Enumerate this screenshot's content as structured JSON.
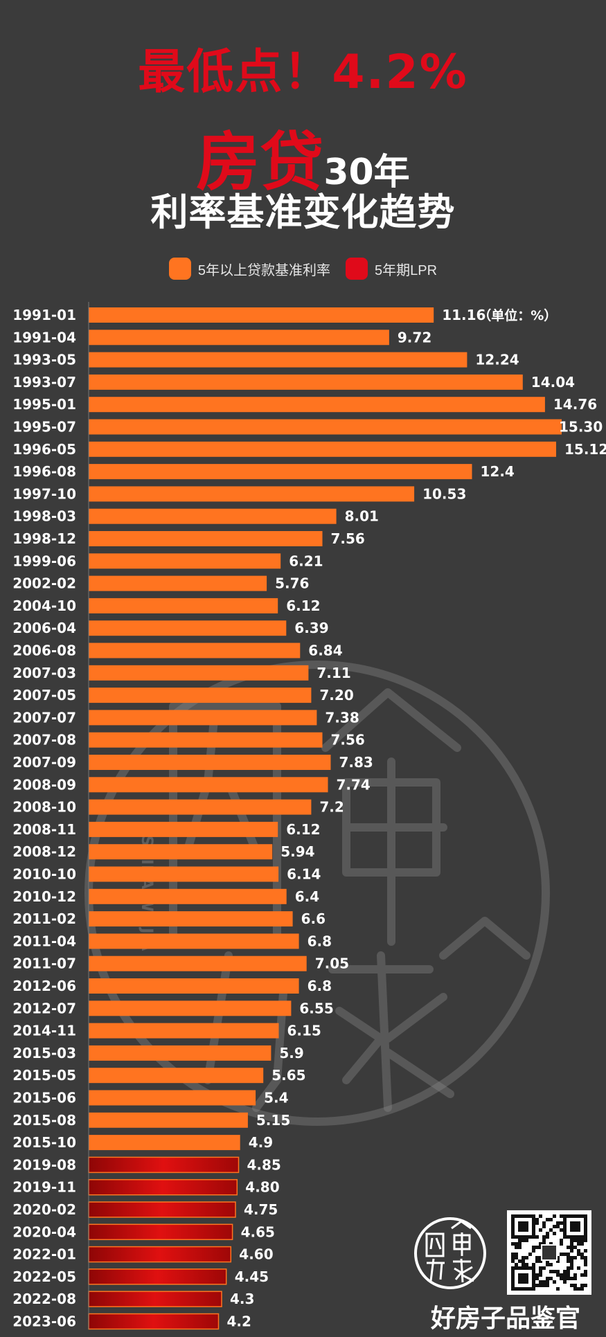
{
  "headline": {
    "top": "最低点！4.2%",
    "mid_big": "房贷",
    "mid_small": "30年",
    "bottom": "利率基准变化趋势"
  },
  "legend": {
    "series1": "5年以上贷款基准利率",
    "series2": "5年期LPR"
  },
  "brand": {
    "name": "好房子品鉴官",
    "watermark_side_text": "SHIHAIWEIJIA"
  },
  "colors": {
    "background": "#3b3b3b",
    "title_red": "#e00a1a",
    "bar_orange": "#ff7420",
    "bar_red": "#d10d0d"
  },
  "chart_data": {
    "type": "bar",
    "orientation": "horizontal",
    "unit_note": "（单位：%）",
    "categories": [
      "1991-01",
      "1991-04",
      "1993-05",
      "1993-07",
      "1995-01",
      "1995-07",
      "1996-05",
      "1996-08",
      "1997-10",
      "1998-03",
      "1998-12",
      "1999-06",
      "2002-02",
      "2004-10",
      "2006-04",
      "2006-08",
      "2007-03",
      "2007-05",
      "2007-07",
      "2007-08",
      "2007-09",
      "2008-09",
      "2008-10",
      "2008-11",
      "2008-12",
      "2010-10",
      "2010-12",
      "2011-02",
      "2011-04",
      "2011-07",
      "2012-06",
      "2012-07",
      "2014-11",
      "2015-03",
      "2015-05",
      "2015-06",
      "2015-08",
      "2015-10",
      "2019-08",
      "2019-11",
      "2020-02",
      "2020-04",
      "2022-01",
      "2022-05",
      "2022-08",
      "2023-06"
    ],
    "value_labels": [
      "11.16",
      "9.72",
      "12.24",
      "14.04",
      "14.76",
      "15.30",
      "15.12",
      "12.4",
      "10.53",
      "8.01",
      "7.56",
      "6.21",
      "5.76",
      "6.12",
      "6.39",
      "6.84",
      "7.11",
      "7.20",
      "7.38",
      "7.56",
      "7.83",
      "7.74",
      "7.2",
      "6.12",
      "5.94",
      "6.14",
      "6.4",
      "6.6",
      "6.8",
      "7.05",
      "6.8",
      "6.55",
      "6.15",
      "5.9",
      "5.65",
      "5.4",
      "5.15",
      "4.9",
      "4.85",
      "4.80",
      "4.75",
      "4.65",
      "4.60",
      "4.45",
      "4.3",
      "4.2"
    ],
    "values": [
      11.16,
      9.72,
      12.24,
      14.04,
      14.76,
      15.3,
      15.12,
      12.4,
      10.53,
      8.01,
      7.56,
      6.21,
      5.76,
      6.12,
      6.39,
      6.84,
      7.11,
      7.2,
      7.38,
      7.56,
      7.83,
      7.74,
      7.2,
      6.12,
      5.94,
      6.14,
      6.4,
      6.6,
      6.8,
      7.05,
      6.8,
      6.55,
      6.15,
      5.9,
      5.65,
      5.4,
      5.15,
      4.9,
      4.85,
      4.8,
      4.75,
      4.65,
      4.6,
      4.45,
      4.3,
      4.2
    ],
    "series_index": [
      0,
      0,
      0,
      0,
      0,
      0,
      0,
      0,
      0,
      0,
      0,
      0,
      0,
      0,
      0,
      0,
      0,
      0,
      0,
      0,
      0,
      0,
      0,
      0,
      0,
      0,
      0,
      0,
      0,
      0,
      0,
      0,
      0,
      0,
      0,
      0,
      0,
      0,
      1,
      1,
      1,
      1,
      1,
      1,
      1,
      1
    ],
    "series": [
      {
        "name": "5年以上贷款基准利率",
        "color": "#ff7420"
      },
      {
        "name": "5年期LPR",
        "color": "#d10d0d"
      }
    ],
    "xlim": [
      0,
      15.3
    ]
  }
}
